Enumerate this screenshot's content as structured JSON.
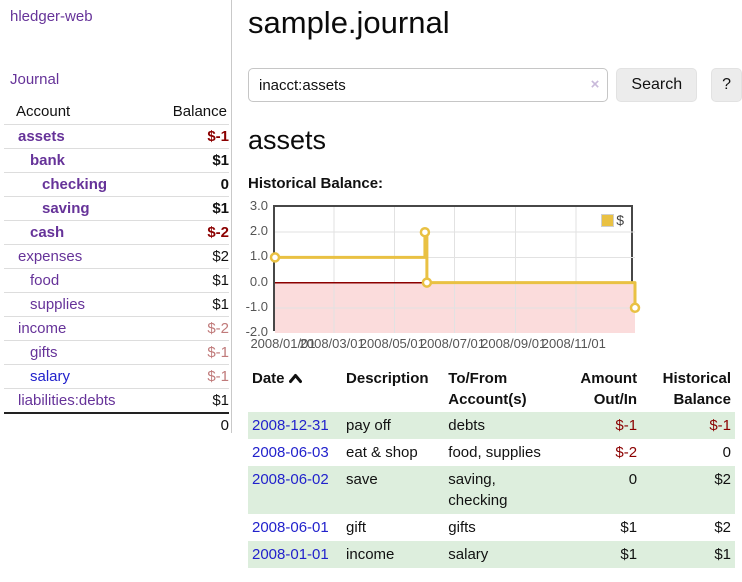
{
  "app": {
    "brand": "hledger-web"
  },
  "nav": {
    "journal_label": "Journal"
  },
  "accounts_panel": {
    "col_account": "Account",
    "col_balance": "Balance",
    "rows": [
      {
        "name": "assets",
        "depth": 0,
        "match": true,
        "balance": "$-1",
        "bal_style": "negstrong"
      },
      {
        "name": "bank",
        "depth": 1,
        "match": true,
        "balance": "$1",
        "bal_style": "strong"
      },
      {
        "name": "checking",
        "depth": 2,
        "match": true,
        "balance": "0",
        "bal_style": "strong"
      },
      {
        "name": "saving",
        "depth": 2,
        "match": true,
        "balance": "$1",
        "bal_style": "strong"
      },
      {
        "name": "cash",
        "depth": 1,
        "match": true,
        "balance": "$-2",
        "bal_style": "negstrong"
      },
      {
        "name": "expenses",
        "depth": 0,
        "match": false,
        "balance": "$2",
        "bal_style": ""
      },
      {
        "name": "food",
        "depth": 1,
        "match": false,
        "balance": "$1",
        "bal_style": ""
      },
      {
        "name": "supplies",
        "depth": 1,
        "match": false,
        "balance": "$1",
        "bal_style": ""
      },
      {
        "name": "income",
        "depth": 0,
        "match": false,
        "balance": "$-2",
        "bal_style": "negfaint"
      },
      {
        "name": "gifts",
        "depth": 1,
        "match": false,
        "balance": "$-1",
        "bal_style": "negfaint"
      },
      {
        "name": "salary",
        "depth": 1,
        "match": false,
        "balance": "$-1",
        "bal_style": "negfaint",
        "link_style": "blue"
      },
      {
        "name": "liabilities:debts",
        "depth": 0,
        "match": false,
        "balance": "$1",
        "bal_style": ""
      }
    ],
    "total": "0"
  },
  "header": {
    "title": "sample.journal"
  },
  "search": {
    "query": "inacct:assets",
    "clear_label": "×",
    "button_label": "Search",
    "help_label": "?"
  },
  "account_view": {
    "heading": "assets",
    "chart_title": "Historical Balance:"
  },
  "chart_data": {
    "type": "line",
    "step": true,
    "title": "Historical Balance:",
    "series": [
      {
        "name": "$",
        "color": "#e9c143",
        "points": [
          [
            "2008-01-01",
            1
          ],
          [
            "2008-06-01",
            2
          ],
          [
            "2008-06-03",
            0
          ],
          [
            "2008-12-31",
            -1
          ]
        ]
      }
    ],
    "x_start": "2008-01-01",
    "x_end": "2008-12-31",
    "x_ticks": [
      {
        "date": "2008-01-01",
        "label": "2008/01/01"
      },
      {
        "date": "2008-03-01",
        "label": "2008/03/01"
      },
      {
        "date": "2008-05-01",
        "label": "2008/05/01"
      },
      {
        "date": "2008-07-01",
        "label": "2008/07/01"
      },
      {
        "date": "2008-09-01",
        "label": "2008/09/01"
      },
      {
        "date": "2008-11-01",
        "label": "2008/11/01"
      }
    ],
    "y_ticks": [
      {
        "value": 3,
        "label": "3.0"
      },
      {
        "value": 2,
        "label": "2.0"
      },
      {
        "value": 1,
        "label": "1.0"
      },
      {
        "value": 0,
        "label": "0.0"
      },
      {
        "value": -1,
        "label": "-1.0"
      },
      {
        "value": -2,
        "label": "-2.0"
      }
    ],
    "ylim": [
      -2,
      3
    ],
    "grid": true,
    "gridline_color": "#e2e2e2",
    "negative_region_fill": "#fbdcdc",
    "zero_line_color": "#8b0000",
    "legend": {
      "position": "top-right",
      "label": "$",
      "swatch_color": "#e9c143"
    }
  },
  "register": {
    "columns": [
      {
        "line1": "Date",
        "line2": "",
        "align": "left",
        "sorted": "asc"
      },
      {
        "line1": "Description",
        "line2": "",
        "align": "left"
      },
      {
        "line1": "To/From",
        "line2": "Account(s)",
        "align": "left"
      },
      {
        "line1": "Amount",
        "line2": "Out/In",
        "align": "right"
      },
      {
        "line1": "Historical",
        "line2": "Balance",
        "align": "right"
      }
    ],
    "rows": [
      {
        "date": "2008-12-31",
        "description": "pay off",
        "accounts": [
          "debts"
        ],
        "amount": "$-1",
        "amount_negative": true,
        "balance": "$-1",
        "balance_negative": true
      },
      {
        "date": "2008-06-03",
        "description": "eat & shop",
        "accounts": [
          "food, supplies"
        ],
        "amount": "$-2",
        "amount_negative": true,
        "balance": "0",
        "balance_negative": false
      },
      {
        "date": "2008-06-02",
        "description": "save",
        "accounts": [
          "saving,",
          "checking"
        ],
        "amount": "0",
        "amount_negative": false,
        "balance": "$2",
        "balance_negative": false
      },
      {
        "date": "2008-06-01",
        "description": "gift",
        "accounts": [
          "gifts"
        ],
        "amount": "$1",
        "amount_negative": false,
        "balance": "$2",
        "balance_negative": false
      },
      {
        "date": "2008-01-01",
        "description": "income",
        "accounts": [
          "salary"
        ],
        "amount": "$1",
        "amount_negative": false,
        "balance": "$1",
        "balance_negative": false
      }
    ]
  }
}
